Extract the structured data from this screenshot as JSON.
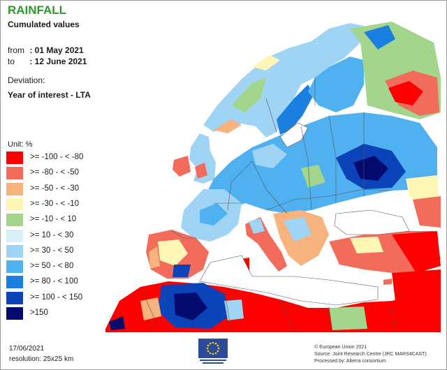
{
  "title": "RAINFALL",
  "subtitle": "Cumulated values",
  "period": {
    "from_label": "from",
    "from_value": ": 01 May 2021",
    "to_label": "to",
    "to_value": ": 12 June 2021"
  },
  "deviation_label": "Deviation:",
  "deviation_value": "Year of interest - LTA",
  "legend": {
    "unit": "Unit:  %",
    "items": [
      {
        "label": ">= -100 - < -80",
        "color": "#ff0000"
      },
      {
        "label": ">= -80 - < -50",
        "color": "#f26b5b"
      },
      {
        "label": ">= -50 - < -30",
        "color": "#f7b27d"
      },
      {
        "label": ">= -30 - < -10",
        "color": "#fff5b5"
      },
      {
        "label": ">= -10 - < 10",
        "color": "#a4d58c"
      },
      {
        "label": ">= 10 - < 30",
        "color": "#d9effa"
      },
      {
        "label": ">= 30 - < 50",
        "color": "#9fd4f5"
      },
      {
        "label": ">= 50 - < 80",
        "color": "#4fb1ef"
      },
      {
        "label": ">= 80 - < 100",
        "color": "#1a7fe0"
      },
      {
        "label": ">= 100 - < 150",
        "color": "#0b43b8"
      },
      {
        "label": ">150",
        "color": "#050a6e"
      }
    ]
  },
  "footer": {
    "date": "17/06/2021",
    "resolution": "resolution: 25x25 km"
  },
  "credits": {
    "line1": "© European Union 2021",
    "line2": "Source: Joint Research Centre (JRC MARS4CAST)",
    "line3": "Processed by: Alterra consortium"
  },
  "colors": {
    "sea": "#ffffff",
    "border_line": "#555555",
    "eu_flag": "#2b4a9a",
    "eu_star": "#ffd400"
  }
}
